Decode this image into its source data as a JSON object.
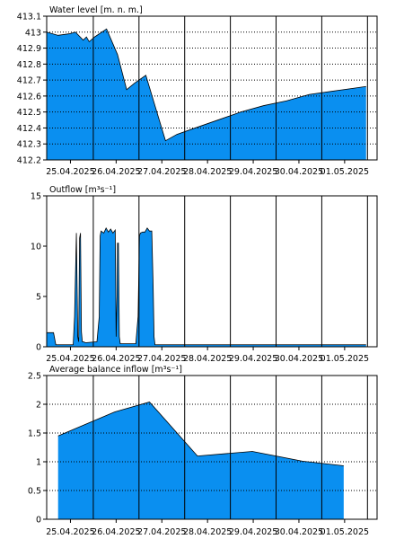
{
  "colors": {
    "fill": "#0a8ff0",
    "stroke": "#000000",
    "background": "#ffffff"
  },
  "chart_data": [
    {
      "type": "area",
      "title": "Water level [m. n. m.]",
      "ylim": [
        412.2,
        413.1
      ],
      "yticks": [
        412.2,
        412.3,
        412.4,
        412.5,
        412.6,
        412.7,
        412.8,
        412.9,
        413,
        413.1
      ],
      "ytick_labels": [
        "412.2",
        "412.3",
        "412.4",
        "412.5",
        "412.6",
        "412.7",
        "412.8",
        "412.9",
        "413",
        "413.1"
      ],
      "xlim": [
        -0.25,
        6.98
      ],
      "day_lines": [
        0.77,
        1.77,
        2.77,
        3.77,
        4.77,
        5.77,
        6.77
      ],
      "x_labels": [
        "25.04.2025",
        "26.04.2025",
        "27.04.2025",
        "28.04.2025",
        "29.04.2025",
        "30.04.2025",
        "01.05.2025"
      ],
      "grid": true,
      "x": [
        -0.25,
        0.0,
        0.25,
        0.38,
        0.55,
        0.62,
        0.68,
        0.8,
        1.06,
        1.3,
        1.5,
        1.67,
        1.92,
        2.35,
        2.6,
        3.0,
        3.5,
        4.0,
        4.5,
        5.0,
        5.5,
        6.0,
        6.5,
        6.74
      ],
      "values": [
        413.0,
        412.98,
        412.99,
        413.0,
        412.95,
        412.97,
        412.94,
        412.97,
        413.02,
        412.86,
        412.64,
        412.68,
        412.73,
        412.32,
        412.36,
        412.4,
        412.45,
        412.5,
        412.54,
        412.57,
        412.61,
        412.63,
        412.65,
        412.66
      ]
    },
    {
      "type": "area",
      "title": "Outflow [m³s⁻¹]",
      "ylim": [
        0,
        15
      ],
      "yticks": [
        0,
        5,
        10,
        15
      ],
      "ytick_labels": [
        "0",
        "5",
        "10",
        "15"
      ],
      "xlim": [
        -0.25,
        6.98
      ],
      "day_lines": [
        0.77,
        1.77,
        2.77,
        3.77,
        4.77,
        5.77,
        6.77
      ],
      "x_labels": [
        "25.04.2025",
        "26.04.2025",
        "27.04.2025",
        "28.04.2025",
        "29.04.2025",
        "30.04.2025",
        "01.05.2025"
      ],
      "grid": false,
      "x": [
        -0.25,
        -0.1,
        -0.05,
        0.33,
        0.36,
        0.4,
        0.43,
        0.45,
        0.47,
        0.49,
        0.51,
        0.53,
        0.55,
        0.6,
        0.85,
        0.9,
        0.92,
        0.94,
        1.0,
        1.05,
        1.1,
        1.15,
        1.2,
        1.25,
        1.27,
        1.29,
        1.3,
        1.32,
        1.34,
        1.36,
        1.55,
        1.7,
        1.75,
        1.78,
        1.8,
        1.85,
        1.9,
        1.95,
        2.0,
        2.05,
        2.08,
        2.1,
        2.12,
        2.17,
        6.74
      ],
      "values": [
        1.4,
        1.4,
        0.2,
        0.2,
        3.0,
        11.3,
        1.0,
        0.5,
        10.8,
        11.3,
        1.5,
        0.5,
        0.5,
        0.4,
        0.5,
        3.0,
        11.0,
        11.5,
        11.3,
        11.8,
        11.4,
        11.7,
        11.3,
        11.6,
        1.0,
        5.0,
        10.3,
        10.3,
        1.0,
        0.3,
        0.3,
        0.3,
        3.0,
        11.0,
        11.3,
        11.4,
        11.4,
        11.8,
        11.5,
        11.5,
        6.0,
        1.0,
        0.2,
        0.2,
        0.2
      ]
    },
    {
      "type": "area",
      "title": "Average balance inflow  [m³s⁻¹]",
      "ylim": [
        0,
        2.5
      ],
      "yticks": [
        0,
        0.5,
        1,
        1.5,
        2,
        2.5
      ],
      "ytick_labels": [
        "0",
        "0.5",
        "1",
        "1.5",
        "2",
        "2.5"
      ],
      "xlim": [
        -0.25,
        6.98
      ],
      "day_lines": [
        0.77,
        1.77,
        2.77,
        3.77,
        4.77,
        5.77,
        6.77
      ],
      "x_labels": [
        "25.04.2025",
        "26.04.2025",
        "27.04.2025",
        "28.04.2025",
        "29.04.2025",
        "30.04.2025",
        "01.05.2025"
      ],
      "grid": true,
      "x": [
        0.0,
        1.25,
        2.0,
        3.05,
        4.25,
        5.35,
        6.25
      ],
      "values": [
        1.45,
        1.87,
        2.04,
        1.1,
        1.18,
        1.01,
        0.93
      ]
    }
  ]
}
